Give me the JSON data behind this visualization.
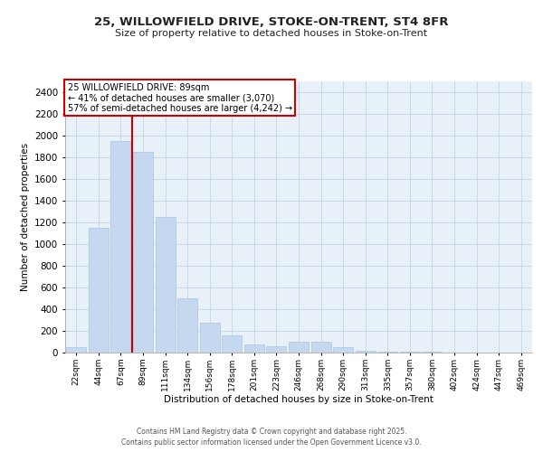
{
  "title_line1": "25, WILLOWFIELD DRIVE, STOKE-ON-TRENT, ST4 8FR",
  "title_line2": "Size of property relative to detached houses in Stoke-on-Trent",
  "xlabel": "Distribution of detached houses by size in Stoke-on-Trent",
  "ylabel": "Number of detached properties",
  "categories": [
    "22sqm",
    "44sqm",
    "67sqm",
    "89sqm",
    "111sqm",
    "134sqm",
    "156sqm",
    "178sqm",
    "201sqm",
    "223sqm",
    "246sqm",
    "268sqm",
    "290sqm",
    "313sqm",
    "335sqm",
    "357sqm",
    "380sqm",
    "402sqm",
    "424sqm",
    "447sqm",
    "469sqm"
  ],
  "values": [
    50,
    1150,
    1950,
    1850,
    1250,
    500,
    275,
    160,
    75,
    55,
    100,
    100,
    50,
    20,
    10,
    5,
    5,
    3,
    2,
    2,
    1
  ],
  "bar_color": "#c5d8f0",
  "bar_edge_color": "#a8c4e0",
  "red_line_x": 3,
  "annotation_title": "25 WILLOWFIELD DRIVE: 89sqm",
  "annotation_line2": "← 41% of detached houses are smaller (3,070)",
  "annotation_line3": "57% of semi-detached houses are larger (4,242) →",
  "annotation_box_color": "#ffffff",
  "annotation_box_edge": "#cc0000",
  "red_line_color": "#cc0000",
  "ylim": [
    0,
    2500
  ],
  "yticks": [
    0,
    200,
    400,
    600,
    800,
    1000,
    1200,
    1400,
    1600,
    1800,
    2000,
    2200,
    2400
  ],
  "grid_color": "#c8d8e8",
  "background_color": "#e8f0f8",
  "footer_line1": "Contains HM Land Registry data © Crown copyright and database right 2025.",
  "footer_line2": "Contains public sector information licensed under the Open Government Licence v3.0."
}
